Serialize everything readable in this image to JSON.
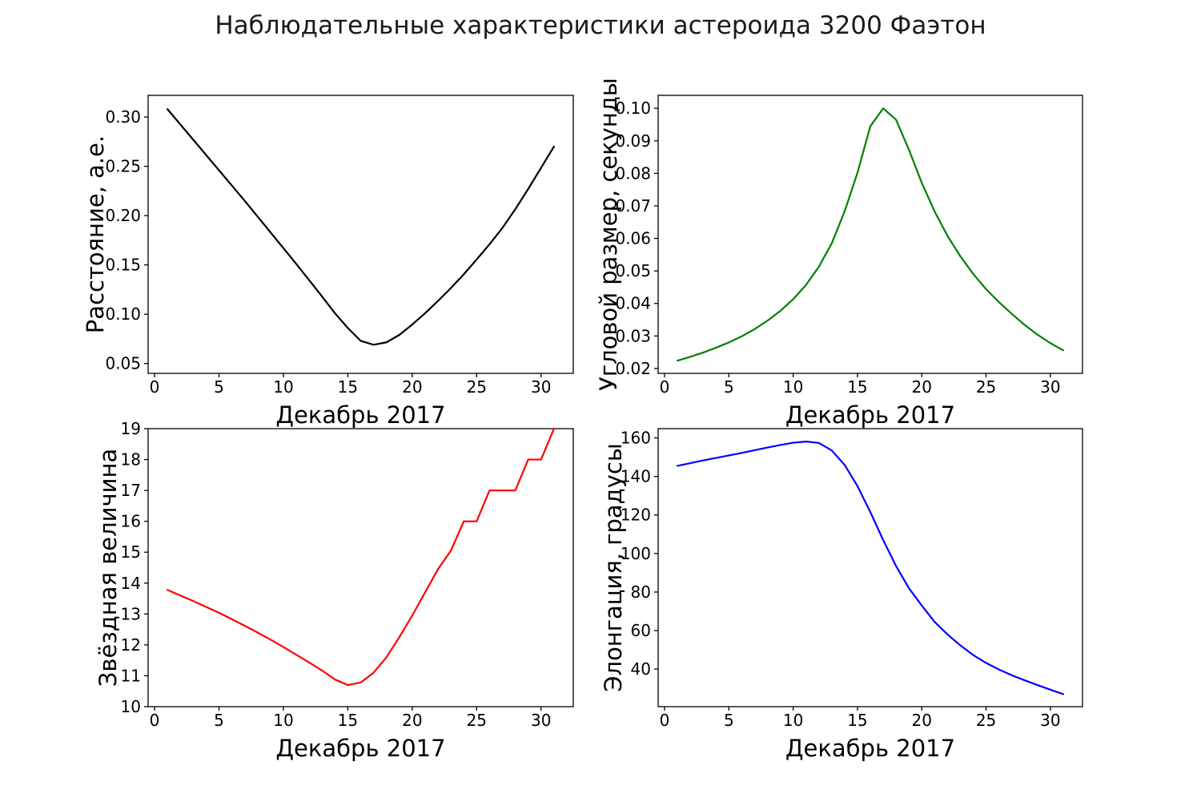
{
  "title": "Наблюдательные характеристики астероида 3200 Фаэтон",
  "colors": {
    "background": "#ffffff",
    "axes": "#000000",
    "distance_line": "#000000",
    "angular_size_line": "#008000",
    "magnitude_line": "#ff0000",
    "elongation_line": "#0000ff"
  },
  "chart_data": [
    {
      "id": "distance",
      "type": "line",
      "xlabel": "Декабрь 2017",
      "ylabel": "Расстояние, а.е.",
      "color": "#000000",
      "legend": "none",
      "grid": false,
      "x": [
        1,
        2,
        3,
        4,
        5,
        6,
        7,
        8,
        9,
        10,
        11,
        12,
        13,
        14,
        15,
        16,
        17,
        18,
        19,
        20,
        21,
        22,
        23,
        24,
        25,
        26,
        27,
        28,
        29,
        30,
        31
      ],
      "y": [
        0.308,
        0.2925,
        0.277,
        0.2615,
        0.246,
        0.2305,
        0.215,
        0.199,
        0.183,
        0.167,
        0.151,
        0.1345,
        0.118,
        0.101,
        0.086,
        0.073,
        0.069,
        0.0715,
        0.079,
        0.0895,
        0.101,
        0.1135,
        0.1265,
        0.1405,
        0.1555,
        0.171,
        0.1875,
        0.2065,
        0.227,
        0.2485,
        0.27
      ],
      "xlim": [
        -0.5,
        32.5
      ],
      "ylim": [
        0.04,
        0.322
      ],
      "xticks": [
        0,
        5,
        10,
        15,
        20,
        25,
        30
      ],
      "xtick_labels": [
        "0",
        "5",
        "10",
        "15",
        "20",
        "25",
        "30"
      ],
      "yticks": [
        0.05,
        0.1,
        0.15,
        0.2,
        0.25,
        0.3
      ],
      "ytick_labels": [
        "0.05",
        "0.10",
        "0.15",
        "0.20",
        "0.25",
        "0.30"
      ]
    },
    {
      "id": "angular-size",
      "type": "line",
      "xlabel": "Декабрь 2017",
      "ylabel": "Угловой размер, секунды",
      "color": "#008000",
      "legend": "none",
      "grid": false,
      "x": [
        1,
        2,
        3,
        4,
        5,
        6,
        7,
        8,
        9,
        10,
        11,
        12,
        13,
        14,
        15,
        16,
        17,
        18,
        19,
        20,
        21,
        22,
        23,
        24,
        25,
        26,
        27,
        28,
        29,
        30,
        31
      ],
      "y": [
        0.0224,
        0.0236,
        0.0249,
        0.0264,
        0.028,
        0.0299,
        0.0321,
        0.0347,
        0.0377,
        0.0413,
        0.0457,
        0.0513,
        0.0585,
        0.0683,
        0.0802,
        0.0945,
        0.1,
        0.0965,
        0.0873,
        0.0771,
        0.0683,
        0.0608,
        0.0545,
        0.0491,
        0.0444,
        0.0404,
        0.0368,
        0.0334,
        0.0304,
        0.0278,
        0.0256
      ],
      "xlim": [
        -0.5,
        32.5
      ],
      "ylim": [
        0.0185,
        0.104
      ],
      "xticks": [
        0,
        5,
        10,
        15,
        20,
        25,
        30
      ],
      "xtick_labels": [
        "0",
        "5",
        "10",
        "15",
        "20",
        "25",
        "30"
      ],
      "yticks": [
        0.02,
        0.03,
        0.04,
        0.05,
        0.06,
        0.07,
        0.08,
        0.09,
        0.1
      ],
      "ytick_labels": [
        "0.02",
        "0.03",
        "0.04",
        "0.05",
        "0.06",
        "0.07",
        "0.08",
        "0.09",
        "0.10"
      ]
    },
    {
      "id": "magnitude",
      "type": "line",
      "xlabel": "Декабрь 2017",
      "ylabel": "Звёздная величина",
      "color": "#ff0000",
      "legend": "none",
      "grid": false,
      "x": [
        1,
        2,
        3,
        4,
        5,
        6,
        7,
        8,
        9,
        10,
        11,
        12,
        13,
        14,
        15,
        16,
        17,
        18,
        19,
        20,
        21,
        22,
        23,
        24,
        25,
        26,
        27,
        28,
        29,
        30,
        31
      ],
      "y": [
        13.78,
        13.6,
        13.42,
        13.23,
        13.04,
        12.83,
        12.62,
        12.4,
        12.17,
        11.93,
        11.68,
        11.43,
        11.17,
        10.88,
        10.7,
        10.78,
        11.1,
        11.6,
        12.25,
        12.95,
        13.7,
        14.45,
        15.05,
        16.0,
        16.0,
        17.0,
        17.0,
        17.0,
        18.0,
        18.0,
        19.0
      ],
      "xlim": [
        -0.5,
        32.5
      ],
      "ylim": [
        10,
        19
      ],
      "xticks": [
        0,
        5,
        10,
        15,
        20,
        25,
        30
      ],
      "xtick_labels": [
        "0",
        "5",
        "10",
        "15",
        "20",
        "25",
        "30"
      ],
      "yticks": [
        10,
        11,
        12,
        13,
        14,
        15,
        16,
        17,
        18,
        19
      ],
      "ytick_labels": [
        "10",
        "11",
        "12",
        "13",
        "14",
        "15",
        "16",
        "17",
        "18",
        "19"
      ]
    },
    {
      "id": "elongation",
      "type": "line",
      "xlabel": "Декабрь 2017",
      "ylabel": "Элонгация, градусы",
      "color": "#0000ff",
      "legend": "none",
      "grid": false,
      "x": [
        1,
        2,
        3,
        4,
        5,
        6,
        7,
        8,
        9,
        10,
        11,
        12,
        13,
        14,
        15,
        16,
        17,
        18,
        19,
        20,
        21,
        22,
        23,
        24,
        25,
        26,
        27,
        28,
        29,
        30,
        31
      ],
      "y": [
        145.5,
        146.9,
        148.3,
        149.6,
        150.9,
        152.2,
        153.6,
        155.0,
        156.3,
        157.5,
        158.1,
        157.4,
        153.5,
        146.0,
        135.0,
        121.5,
        107.0,
        93.5,
        82.0,
        73.0,
        64.5,
        58.0,
        52.3,
        47.3,
        43.2,
        39.8,
        36.8,
        34.2,
        31.7,
        29.3,
        27.0
      ],
      "xlim": [
        -0.5,
        32.5
      ],
      "ylim": [
        20.5,
        164.8
      ],
      "xticks": [
        0,
        5,
        10,
        15,
        20,
        25,
        30
      ],
      "xtick_labels": [
        "0",
        "5",
        "10",
        "15",
        "20",
        "25",
        "30"
      ],
      "yticks": [
        40,
        60,
        80,
        100,
        120,
        140,
        160
      ],
      "ytick_labels": [
        "40",
        "60",
        "80",
        "100",
        "120",
        "140",
        "160"
      ]
    }
  ]
}
